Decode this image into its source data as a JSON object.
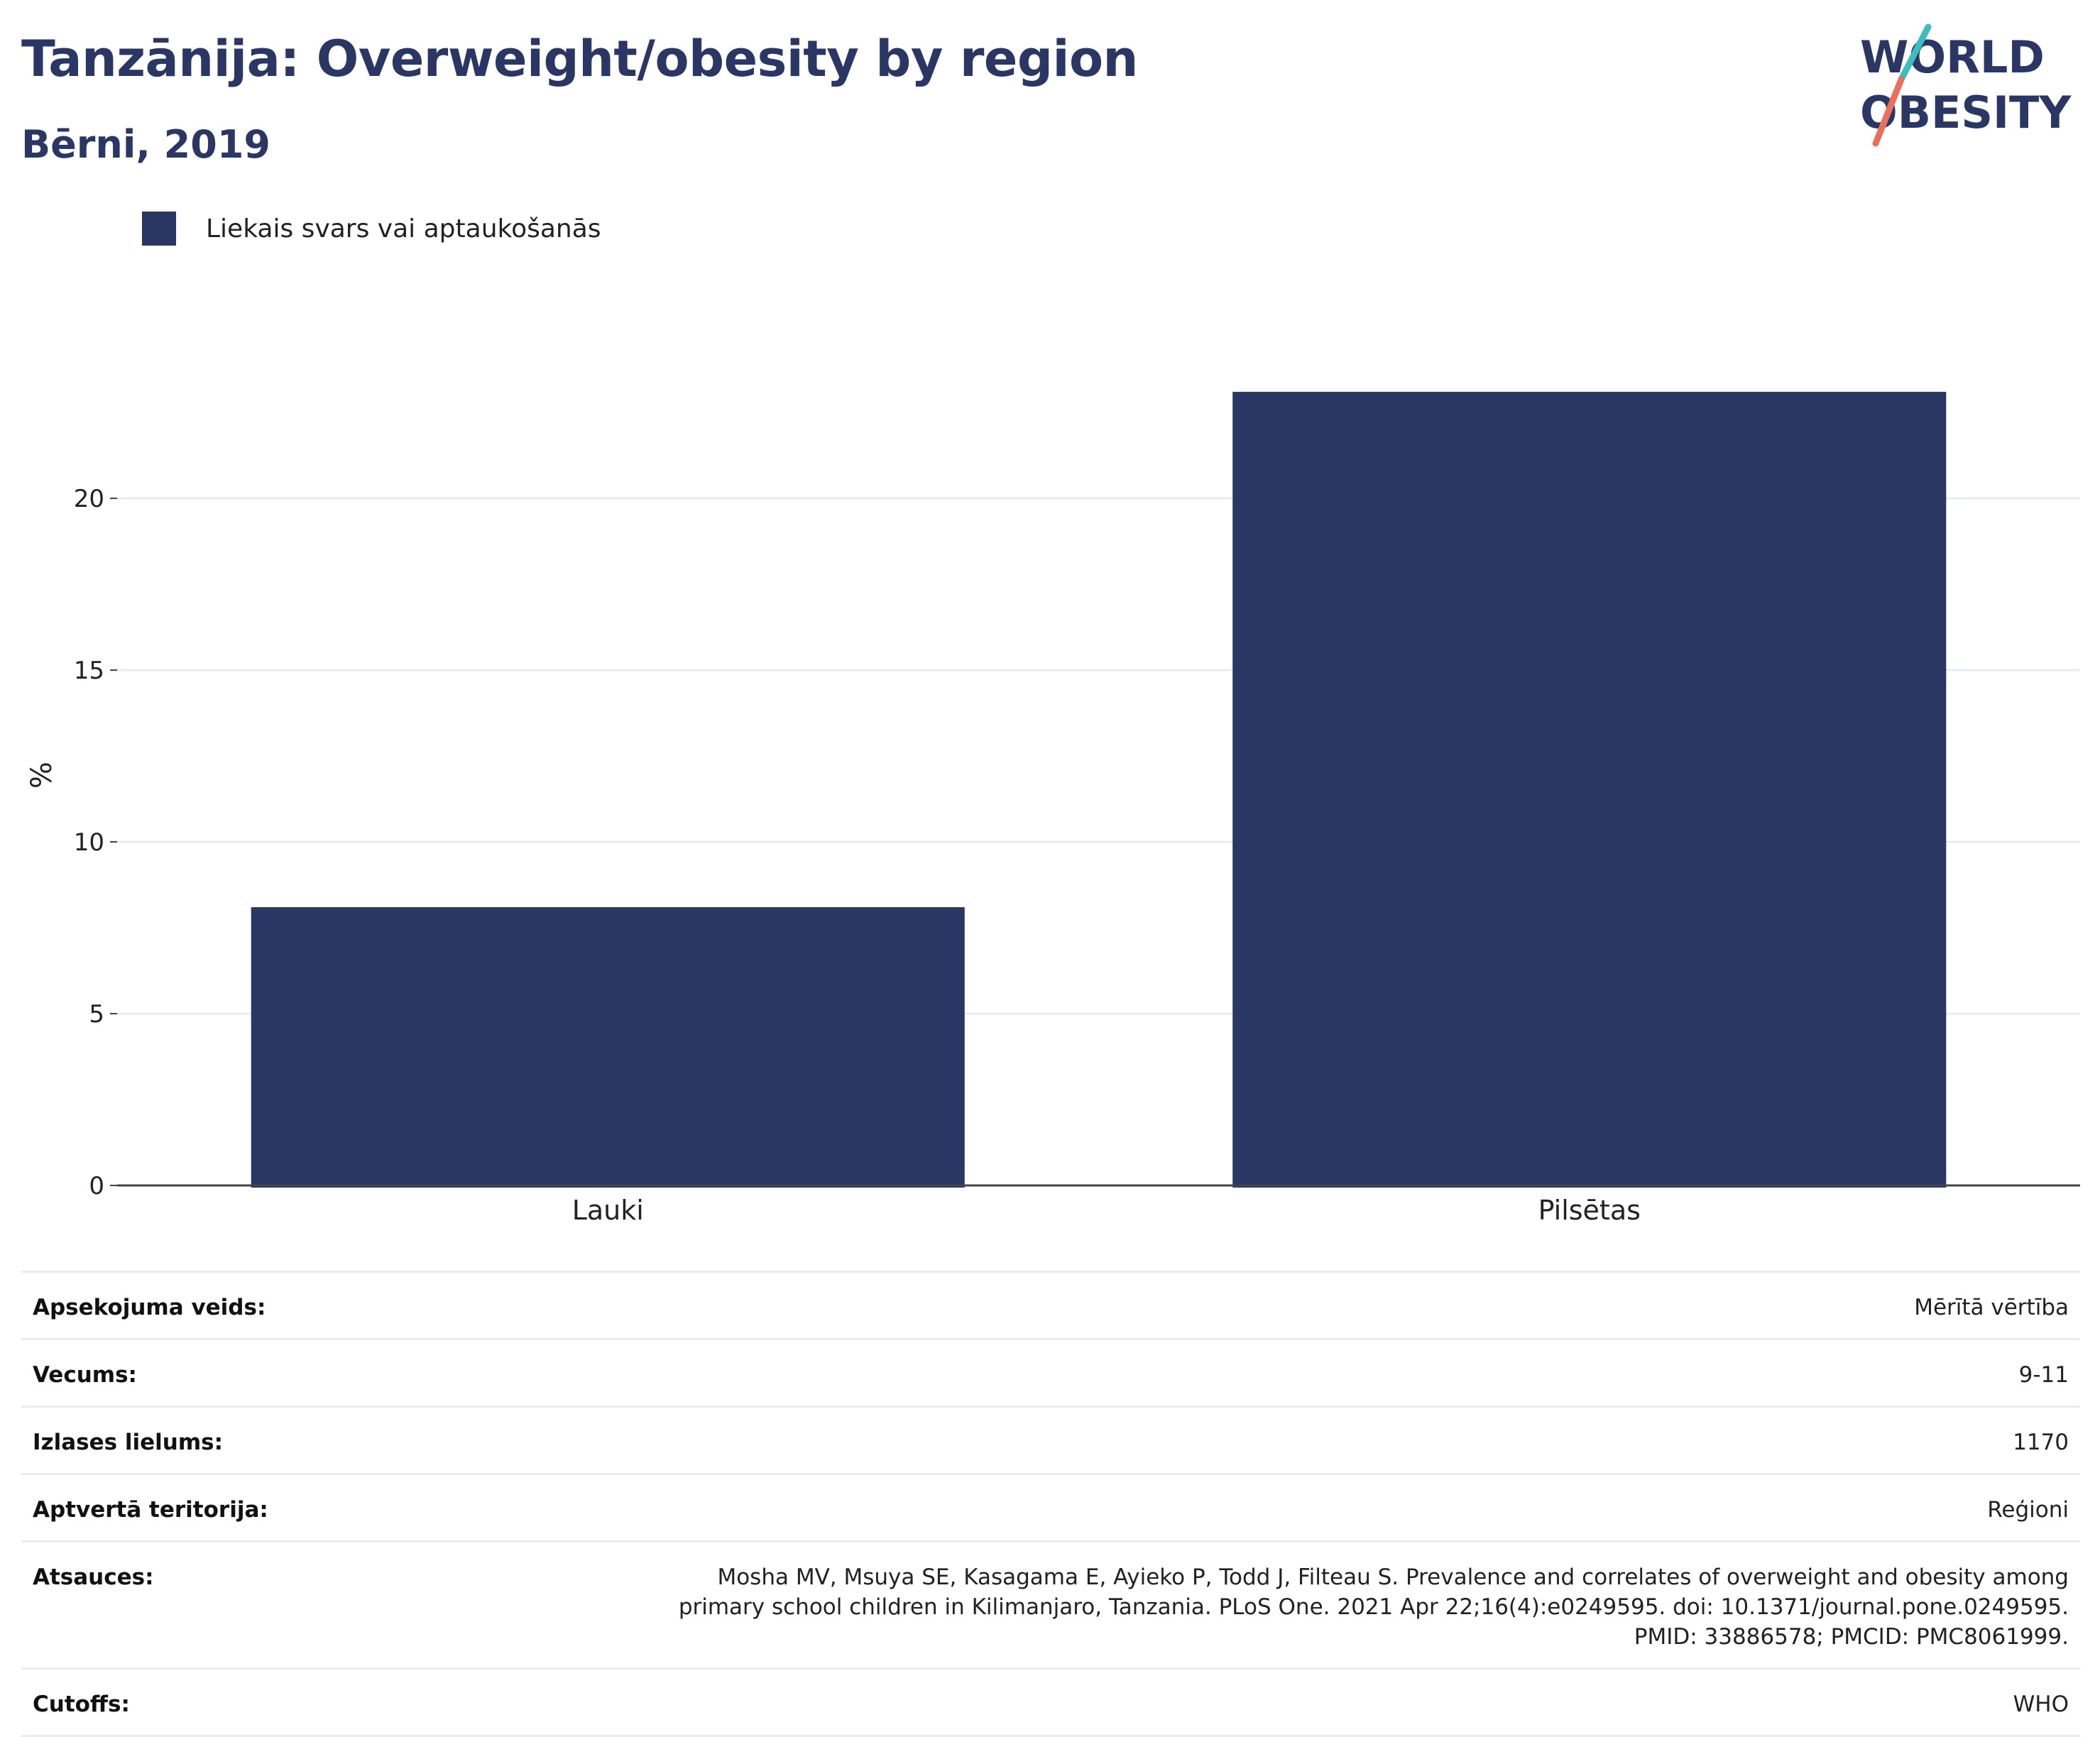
{
  "header": {
    "title": "Tanzānija: Overweight/obesity by region",
    "subtitle": "Bērni, 2019"
  },
  "logo": {
    "line1": "WORLD",
    "line2": "OBESITY",
    "colors": {
      "navy": "#2a3664",
      "teal": "#3dbdbd",
      "coral": "#e8705c"
    }
  },
  "legend": {
    "label": "Liekais svars vai aptaukošanās"
  },
  "chart_data": {
    "type": "bar",
    "categories": [
      "Lauki",
      "Pilsētas"
    ],
    "series": [
      {
        "name": "Liekais svars vai aptaukošanās",
        "values": [
          8.1,
          23.1
        ],
        "color": "#2a3664"
      }
    ],
    "ylabel": "%",
    "xlabel": "",
    "ylim": [
      0,
      25
    ],
    "yticks": [
      0,
      5,
      10,
      15,
      20
    ],
    "grid": true,
    "legend_position": "top-left"
  },
  "meta": {
    "rows": [
      {
        "key": "Apsekojuma veids:",
        "value": "Mērītā vērtība"
      },
      {
        "key": "Vecums:",
        "value": "9-11"
      },
      {
        "key": "Izlases lielums:",
        "value": "1170"
      },
      {
        "key": "Aptvertā teritorija:",
        "value": "Reģioni"
      },
      {
        "key": "Atsauces:",
        "value": "Mosha MV, Msuya SE, Kasagama E, Ayieko P, Todd J, Filteau S. Prevalence and correlates of overweight and obesity among primary school children in Kilimanjaro, Tanzania. PLoS One. 2021 Apr 22;16(4):e0249595. doi: 10.1371/journal.pone.0249595. PMID: 33886578; PMCID: PMC8061999."
      },
      {
        "key": "Cutoffs:",
        "value": "WHO"
      }
    ]
  }
}
